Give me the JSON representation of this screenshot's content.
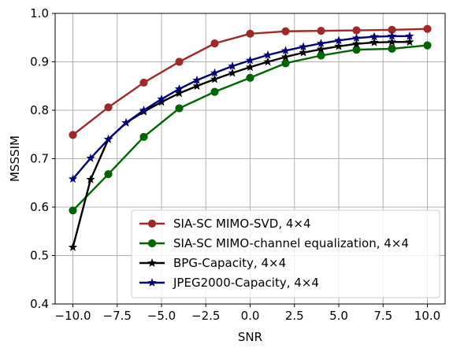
{
  "chart_data": {
    "type": "line",
    "xlabel": "SNR",
    "ylabel": "MSSSIM",
    "xlim": [
      -11,
      11
    ],
    "ylim": [
      0.4,
      1.0
    ],
    "xticks": [
      -10.0,
      -7.5,
      -5.0,
      -2.5,
      0.0,
      2.5,
      5.0,
      7.5,
      10.0
    ],
    "xtick_labels": [
      "−10.0",
      "−7.5",
      "−5.0",
      "−2.5",
      "0.0",
      "2.5",
      "5.0",
      "7.5",
      "10.0"
    ],
    "yticks": [
      0.4,
      0.5,
      0.6,
      0.7,
      0.8,
      0.9,
      1.0
    ],
    "ytick_labels": [
      "0.4",
      "0.5",
      "0.6",
      "0.7",
      "0.8",
      "0.9",
      "1.0"
    ],
    "grid": true,
    "legend_position": "lower-right",
    "series": [
      {
        "name": "SIA-SC MIMO-SVD, 4×4",
        "color": "#a02828",
        "marker": "circle",
        "x": [
          -10,
          -8,
          -6,
          -4,
          -2,
          0,
          2,
          4,
          6,
          8,
          10
        ],
        "y": [
          0.749,
          0.806,
          0.857,
          0.9,
          0.938,
          0.958,
          0.963,
          0.964,
          0.965,
          0.966,
          0.968
        ]
      },
      {
        "name": "SIA-SC MIMO-channel equalization, 4×4",
        "color": "#006400",
        "marker": "circle",
        "x": [
          -10,
          -8,
          -6,
          -4,
          -2,
          0,
          2,
          4,
          6,
          8,
          10
        ],
        "y": [
          0.593,
          0.668,
          0.745,
          0.804,
          0.838,
          0.867,
          0.897,
          0.913,
          0.925,
          0.927,
          0.934
        ]
      },
      {
        "name": "BPG-Capacity, 4×4",
        "color": "#000000",
        "marker": "star",
        "x": [
          -10,
          -9,
          -8,
          -7,
          -6,
          -5,
          -4,
          -3,
          -2,
          -1,
          0,
          1,
          2,
          3,
          4,
          5,
          6,
          7,
          8,
          9
        ],
        "y": [
          0.517,
          0.657,
          0.74,
          0.774,
          0.797,
          0.817,
          0.835,
          0.85,
          0.864,
          0.877,
          0.889,
          0.9,
          0.91,
          0.919,
          0.926,
          0.932,
          0.937,
          0.94,
          0.941,
          0.941
        ]
      },
      {
        "name": "JPEG2000-Capacity, 4×4",
        "color": "#00007a",
        "marker": "star",
        "x": [
          -10,
          -9,
          -8,
          -7,
          -6,
          -5,
          -4,
          -3,
          -2,
          -1,
          0,
          1,
          2,
          3,
          4,
          5,
          6,
          7,
          8,
          9
        ],
        "y": [
          0.658,
          0.701,
          0.74,
          0.774,
          0.8,
          0.823,
          0.844,
          0.862,
          0.877,
          0.891,
          0.903,
          0.914,
          0.923,
          0.931,
          0.938,
          0.944,
          0.949,
          0.952,
          0.953,
          0.953
        ]
      }
    ]
  }
}
